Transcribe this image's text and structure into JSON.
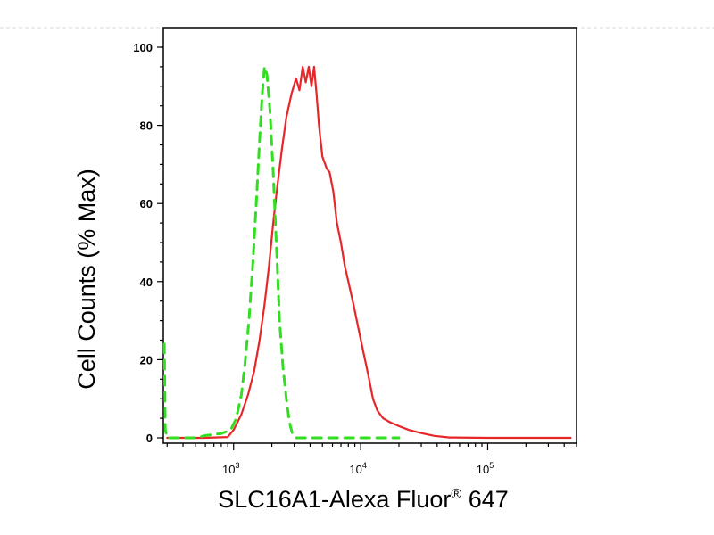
{
  "chart_data": {
    "type": "line",
    "xlabel": "SLC16A1-Alexa Fluor® 647",
    "xlabel_main": "SLC16A1-Alexa Fluor",
    "xlabel_sup": "®",
    "xlabel_tail": " 647",
    "ylabel": "Cell Counts (% Max)",
    "x_scale": "log",
    "xlim": [
      280,
      500000
    ],
    "ylim": [
      0,
      100
    ],
    "x_ticks": [
      {
        "base": "10",
        "exp": "3",
        "value": 1000
      },
      {
        "base": "10",
        "exp": "4",
        "value": 10000
      },
      {
        "base": "10",
        "exp": "5",
        "value": 100000
      }
    ],
    "y_ticks": [
      "0",
      "20",
      "40",
      "60",
      "80",
      "100"
    ],
    "grid": false,
    "series": [
      {
        "color": "#e8262a",
        "style": "solid",
        "points": [
          [
            300,
            0
          ],
          [
            600,
            0
          ],
          [
            900,
            0.2
          ],
          [
            1000,
            2
          ],
          [
            1150,
            6
          ],
          [
            1300,
            11
          ],
          [
            1450,
            17
          ],
          [
            1600,
            25
          ],
          [
            1750,
            34
          ],
          [
            1900,
            44
          ],
          [
            2050,
            55
          ],
          [
            2200,
            64
          ],
          [
            2400,
            74
          ],
          [
            2600,
            82
          ],
          [
            2850,
            88
          ],
          [
            3100,
            92
          ],
          [
            3300,
            89
          ],
          [
            3500,
            95
          ],
          [
            3700,
            91
          ],
          [
            3900,
            95
          ],
          [
            4100,
            90
          ],
          [
            4300,
            95
          ],
          [
            4500,
            88
          ],
          [
            4700,
            80
          ],
          [
            5000,
            72
          ],
          [
            5400,
            69
          ],
          [
            5700,
            68
          ],
          [
            6100,
            63
          ],
          [
            6500,
            55
          ],
          [
            7000,
            50
          ],
          [
            7500,
            44
          ],
          [
            8000,
            40
          ],
          [
            8800,
            34
          ],
          [
            9600,
            28
          ],
          [
            10500,
            22
          ],
          [
            11500,
            16
          ],
          [
            12500,
            10
          ],
          [
            13500,
            7
          ],
          [
            15000,
            5
          ],
          [
            17000,
            4
          ],
          [
            20000,
            3
          ],
          [
            24000,
            2
          ],
          [
            30000,
            1.2
          ],
          [
            38000,
            0.5
          ],
          [
            50000,
            0.1
          ],
          [
            100000,
            0
          ],
          [
            450000,
            0
          ]
        ]
      },
      {
        "color": "#33dd22",
        "style": "dashed",
        "points": [
          [
            285,
            24
          ],
          [
            290,
            2
          ],
          [
            300,
            0
          ],
          [
            400,
            0
          ],
          [
            500,
            0
          ],
          [
            600,
            0.6
          ],
          [
            800,
            1.1
          ],
          [
            950,
            2
          ],
          [
            1050,
            5
          ],
          [
            1150,
            11
          ],
          [
            1230,
            19
          ],
          [
            1320,
            30
          ],
          [
            1420,
            45
          ],
          [
            1520,
            62
          ],
          [
            1600,
            76
          ],
          [
            1680,
            88
          ],
          [
            1750,
            95
          ],
          [
            1830,
            93
          ],
          [
            1930,
            84
          ],
          [
            2050,
            68
          ],
          [
            2200,
            45
          ],
          [
            2300,
            30
          ],
          [
            2450,
            18
          ],
          [
            2600,
            10
          ],
          [
            2750,
            4
          ],
          [
            2900,
            1
          ],
          [
            3100,
            0
          ],
          [
            5000,
            0
          ],
          [
            8000,
            0
          ],
          [
            12000,
            0
          ],
          [
            20000,
            0
          ]
        ]
      }
    ]
  }
}
